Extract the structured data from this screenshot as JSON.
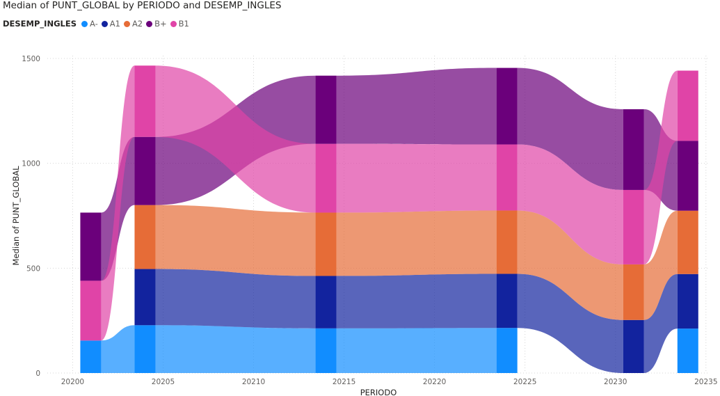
{
  "title": "Median of PUNT_GLOBAL by PERIODO and DESEMP_INGLES",
  "legend_title": "DESEMP_INGLES",
  "chart_data": {
    "type": "ribbon",
    "title": "Median of PUNT_GLOBAL by PERIODO and DESEMP_INGLES",
    "xlabel": "PERIODO",
    "ylabel": "Median of PUNT_GLOBAL",
    "x_ticks": [
      20200,
      20205,
      20210,
      20215,
      20220,
      20225,
      20230,
      20235
    ],
    "y_ticks": [
      0,
      500,
      1000,
      1500
    ],
    "xlim": [
      20198.6,
      20235.2
    ],
    "ylim": [
      0,
      1500
    ],
    "grid": true,
    "legend_position": "top-left",
    "periods": [
      20201,
      20204,
      20214,
      20224,
      20231,
      20234
    ],
    "series": [
      {
        "name": "A-",
        "color": "#118DFF",
        "values": [
          155,
          228,
          213,
          215,
          0,
          212
        ]
      },
      {
        "name": "A1",
        "color": "#12239E",
        "values": [
          null,
          268,
          250,
          258,
          253,
          260
        ]
      },
      {
        "name": "A2",
        "color": "#E66C37",
        "values": [
          null,
          305,
          302,
          302,
          265,
          302
        ]
      },
      {
        "name": "B+",
        "color": "#6B007B",
        "values": [
          325,
          325,
          325,
          365,
          385,
          333
        ]
      },
      {
        "name": "B1",
        "color": "#E044A7",
        "values": [
          285,
          340,
          328,
          315,
          355,
          335
        ]
      }
    ],
    "stack_order": [
      [
        "A-",
        "B1",
        "B+"
      ],
      [
        "A-",
        "A1",
        "A2",
        "B+",
        "B1"
      ],
      [
        "A-",
        "A1",
        "A2",
        "B1",
        "B+"
      ],
      [
        "A-",
        "A1",
        "A2",
        "B1",
        "B+"
      ],
      [
        "A1",
        "A2",
        "B1",
        "B+"
      ],
      [
        "A-",
        "A1",
        "A2",
        "B+",
        "B1"
      ]
    ]
  }
}
